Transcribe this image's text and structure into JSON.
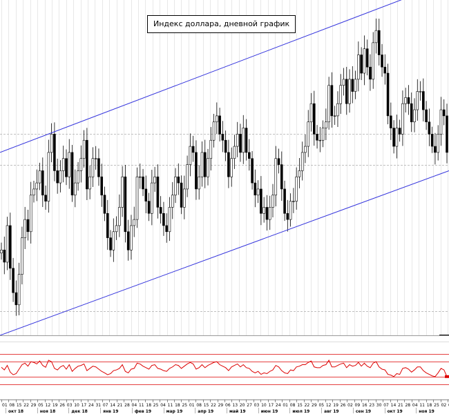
{
  "chart_data": {
    "type": "candlestick",
    "title": "Индекс доллара, дневной график",
    "xlabel": "",
    "ylabel": "",
    "grid": true,
    "legend": "none",
    "x_day_ticks": [
      "01",
      "08",
      "15",
      "22",
      "29",
      "05",
      "12",
      "19",
      "26",
      "03",
      "10",
      "17",
      "24",
      "31",
      "07",
      "14",
      "21",
      "28",
      "04",
      "11",
      "18",
      "25",
      "04",
      "11",
      "18",
      "25",
      "01",
      "08",
      "15",
      "22",
      "29",
      "06",
      "13",
      "20",
      "27",
      "03",
      "10",
      "17",
      "24",
      "01",
      "08",
      "15",
      "22",
      "29",
      "05",
      "12",
      "19",
      "26",
      "02",
      "09",
      "16",
      "23",
      "30",
      "07",
      "14",
      "21",
      "28",
      "04",
      "11",
      "18",
      "25",
      "02",
      "09"
    ],
    "x_months": [
      "окт 18",
      "ноя 18",
      "дек 18",
      "янв 19",
      "фев 19",
      "мар 19",
      "апр 19",
      "май 19",
      "июн 19",
      "июл 19",
      "авг 19",
      "сен 19",
      "окт 19",
      "ноя 19"
    ],
    "price": {
      "ylim": [
        94.0,
        99.5
      ],
      "close": [
        95.4,
        95.2,
        95.8,
        95.1,
        94.7,
        94.5,
        95.0,
        95.6,
        95.9,
        95.7,
        96.3,
        96.4,
        96.5,
        96.7,
        96.3,
        96.2,
        97.0,
        97.3,
        96.7,
        96.5,
        96.7,
        96.9,
        96.6,
        97.0,
        96.3,
        96.5,
        96.7,
        96.9,
        97.2,
        96.4,
        96.6,
        96.9,
        96.9,
        96.6,
        96.3,
        96.0,
        95.6,
        95.4,
        95.7,
        95.8,
        96.1,
        96.6,
        95.7,
        95.4,
        95.8,
        95.9,
        96.6,
        96.6,
        96.4,
        96.2,
        96.0,
        96.5,
        96.6,
        96.1,
        96.0,
        95.8,
        95.7,
        96.1,
        96.3,
        96.6,
        96.5,
        96.1,
        96.4,
        96.8,
        97.1,
        97.0,
        96.4,
        96.6,
        97.0,
        96.6,
        96.9,
        97.2,
        97.5,
        97.6,
        97.3,
        97.2,
        97.0,
        96.6,
        96.9,
        97.1,
        97.3,
        97.0,
        97.4,
        97.0,
        96.9,
        96.5,
        96.3,
        96.4,
        96.0,
        96.1,
        95.9,
        96.1,
        96.3,
        96.9,
        96.8,
        96.4,
        96.0,
        95.9,
        96.2,
        96.2,
        96.6,
        96.7,
        97.0,
        97.1,
        97.5,
        97.8,
        97.3,
        97.2,
        97.2,
        97.4,
        97.5,
        98.1,
        97.6,
        97.6,
        97.8,
        98.1,
        98.2,
        97.8,
        98.2,
        98.0,
        98.2,
        98.6,
        98.3,
        98.7,
        98.4,
        98.2,
        98.8,
        99.0,
        98.6,
        98.4,
        98.3,
        97.6,
        97.4,
        97.1,
        97.4,
        97.3,
        97.8,
        97.9,
        97.8,
        97.5,
        97.7,
        98.0,
        98.0,
        97.7,
        97.5,
        97.3,
        97.1,
        97.0,
        97.3,
        97.7,
        97.6,
        97.0
      ],
      "channel": {
        "upper": [
          97.0,
          99.8
        ],
        "lower": [
          94.0,
          96.7
        ]
      },
      "hlines": [
        97.3,
        96.8,
        94.4
      ]
    },
    "oscillator": {
      "ylim": [
        0,
        100
      ],
      "levels": [
        90,
        70,
        30,
        10
      ],
      "values": [
        55,
        48,
        60,
        42,
        35,
        38,
        50,
        62,
        66,
        58,
        70,
        68,
        64,
        72,
        60,
        55,
        74,
        70,
        52,
        48,
        56,
        60,
        50,
        62,
        44,
        52,
        58,
        60,
        64,
        46,
        52,
        58,
        56,
        50,
        44,
        40,
        35,
        38,
        46,
        48,
        52,
        62,
        44,
        40,
        50,
        52,
        66,
        64,
        58,
        54,
        50,
        60,
        62,
        52,
        50,
        46,
        44,
        52,
        56,
        62,
        60,
        52,
        58,
        64,
        68,
        64,
        50,
        54,
        62,
        54,
        60,
        64,
        68,
        70,
        62,
        58,
        54,
        46,
        56,
        60,
        64,
        56,
        62,
        54,
        52,
        44,
        40,
        44,
        36,
        40,
        38,
        44,
        48,
        60,
        56,
        46,
        40,
        38,
        48,
        46,
        56,
        58,
        62,
        62,
        68,
        72,
        56,
        54,
        54,
        60,
        62,
        74,
        56,
        56,
        60,
        64,
        66,
        54,
        62,
        58,
        60,
        68,
        58,
        66,
        58,
        54,
        66,
        70,
        56,
        50,
        48,
        36,
        34,
        30,
        38,
        36,
        52,
        54,
        50,
        42,
        48,
        56,
        56,
        46,
        40,
        36,
        32,
        30,
        40,
        52,
        48,
        30
      ]
    },
    "colors": {
      "candles": "#000000",
      "channel": "#3333dd",
      "oscillator": "#dd0000",
      "grid": "#d8d8d8",
      "dashed": "#aaaaaa"
    }
  }
}
